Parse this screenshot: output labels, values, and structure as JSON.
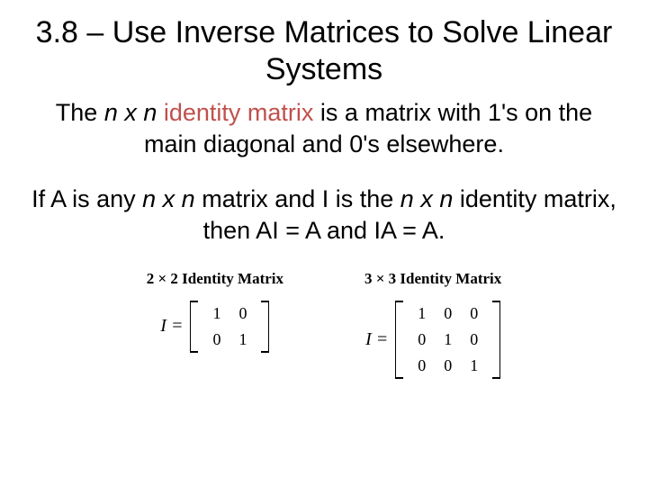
{
  "title": "3.8 – Use Inverse Matrices to Solve Linear Systems",
  "p1": {
    "pre": "The ",
    "nxn": "n x n",
    "term": " identity matrix",
    "post": " is a matrix with 1's on the main diagonal and 0's elsewhere."
  },
  "p2": {
    "t1": "If A is any ",
    "nxn1": "n x n",
    "t2": " matrix and I is the ",
    "nxn2": "n x n",
    "t3": " identity matrix, then AI = A and IA = A."
  },
  "matrix2": {
    "title": "2 × 2 Identity Matrix",
    "lhs": "I =",
    "rows": [
      [
        "1",
        "0"
      ],
      [
        "0",
        "1"
      ]
    ]
  },
  "matrix3": {
    "title": "3 × 3 Identity Matrix",
    "lhs": "I =",
    "rows": [
      [
        "1",
        "0",
        "0"
      ],
      [
        "0",
        "1",
        "0"
      ],
      [
        "0",
        "0",
        "1"
      ]
    ]
  },
  "colors": {
    "highlight": "#c0504d",
    "text": "#000000",
    "background": "#ffffff"
  },
  "fonts": {
    "title_size": 34,
    "body_size": 27,
    "matrix_title_size": 17,
    "matrix_cell_size": 18
  }
}
